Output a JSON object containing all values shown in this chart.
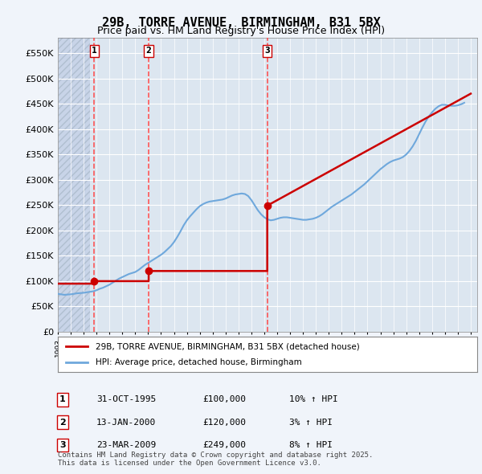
{
  "title": "29B, TORRE AVENUE, BIRMINGHAM, B31 5BX",
  "subtitle": "Price paid vs. HM Land Registry's House Price Index (HPI)",
  "xlim_start": 1993.0,
  "xlim_end": 2025.5,
  "ylim": [
    0,
    580000
  ],
  "yticks": [
    0,
    50000,
    100000,
    150000,
    200000,
    250000,
    300000,
    350000,
    400000,
    450000,
    500000,
    550000
  ],
  "ytick_labels": [
    "£0",
    "£50K",
    "£100K",
    "£150K",
    "£200K",
    "£250K",
    "£300K",
    "£350K",
    "£400K",
    "£450K",
    "£500K",
    "£550K"
  ],
  "transactions": [
    {
      "num": 1,
      "date_dec": 1995.83,
      "price": 100000,
      "label": "1",
      "pct": "10%",
      "date_str": "31-OCT-1995",
      "price_str": "£100,000"
    },
    {
      "num": 2,
      "date_dec": 2000.04,
      "price": 120000,
      "label": "2",
      "pct": "3%",
      "date_str": "13-JAN-2000",
      "price_str": "£120,000"
    },
    {
      "num": 3,
      "date_dec": 2009.23,
      "price": 249000,
      "label": "3",
      "pct": "8%",
      "date_str": "23-MAR-2009",
      "price_str": "£249,000"
    }
  ],
  "hpi_line_color": "#6fa8dc",
  "price_line_color": "#cc0000",
  "vline_color": "#ff4444",
  "background_color": "#f0f4fa",
  "plot_bg_color": "#dce6f0",
  "grid_color": "#ffffff",
  "hatch_color": "#c8d4e8",
  "legend_box_entries": [
    "29B, TORRE AVENUE, BIRMINGHAM, B31 5BX (detached house)",
    "HPI: Average price, detached house, Birmingham"
  ],
  "table_entries": [
    {
      "num": "1",
      "date": "31-OCT-1995",
      "price": "£100,000",
      "pct": "10% ↑ HPI"
    },
    {
      "num": "2",
      "date": "13-JAN-2000",
      "price": "£120,000",
      "pct": "3% ↑ HPI"
    },
    {
      "num": "3",
      "date": "23-MAR-2009",
      "price": "£249,000",
      "pct": "8% ↑ HPI"
    }
  ],
  "footer": "Contains HM Land Registry data © Crown copyright and database right 2025.\nThis data is licensed under the Open Government Licence v3.0.",
  "hpi_data_x": [
    1993.0,
    1993.25,
    1993.5,
    1993.75,
    1994.0,
    1994.25,
    1994.5,
    1994.75,
    1995.0,
    1995.25,
    1995.5,
    1995.75,
    1996.0,
    1996.25,
    1996.5,
    1996.75,
    1997.0,
    1997.25,
    1997.5,
    1997.75,
    1998.0,
    1998.25,
    1998.5,
    1998.75,
    1999.0,
    1999.25,
    1999.5,
    1999.75,
    2000.0,
    2000.25,
    2000.5,
    2000.75,
    2001.0,
    2001.25,
    2001.5,
    2001.75,
    2002.0,
    2002.25,
    2002.5,
    2002.75,
    2003.0,
    2003.25,
    2003.5,
    2003.75,
    2004.0,
    2004.25,
    2004.5,
    2004.75,
    2005.0,
    2005.25,
    2005.5,
    2005.75,
    2006.0,
    2006.25,
    2006.5,
    2006.75,
    2007.0,
    2007.25,
    2007.5,
    2007.75,
    2008.0,
    2008.25,
    2008.5,
    2008.75,
    2009.0,
    2009.25,
    2009.5,
    2009.75,
    2010.0,
    2010.25,
    2010.5,
    2010.75,
    2011.0,
    2011.25,
    2011.5,
    2011.75,
    2012.0,
    2012.25,
    2012.5,
    2012.75,
    2013.0,
    2013.25,
    2013.5,
    2013.75,
    2014.0,
    2014.25,
    2014.5,
    2014.75,
    2015.0,
    2015.25,
    2015.5,
    2015.75,
    2016.0,
    2016.25,
    2016.5,
    2016.75,
    2017.0,
    2017.25,
    2017.5,
    2017.75,
    2018.0,
    2018.25,
    2018.5,
    2018.75,
    2019.0,
    2019.25,
    2019.5,
    2019.75,
    2020.0,
    2020.25,
    2020.5,
    2020.75,
    2021.0,
    2021.25,
    2021.5,
    2021.75,
    2022.0,
    2022.25,
    2022.5,
    2022.75,
    2023.0,
    2023.25,
    2023.5,
    2023.75,
    2024.0,
    2024.25,
    2024.5
  ],
  "hpi_data_y": [
    75000,
    74000,
    73000,
    73500,
    74000,
    75000,
    76000,
    76500,
    77000,
    78000,
    79000,
    80000,
    82000,
    85000,
    87000,
    90000,
    93000,
    97000,
    101000,
    105000,
    108000,
    111000,
    114000,
    116000,
    118000,
    122000,
    127000,
    132000,
    136000,
    140000,
    144000,
    148000,
    152000,
    157000,
    163000,
    169000,
    177000,
    187000,
    198000,
    210000,
    220000,
    228000,
    235000,
    242000,
    248000,
    252000,
    255000,
    257000,
    258000,
    259000,
    260000,
    261000,
    263000,
    266000,
    269000,
    271000,
    272000,
    273000,
    272000,
    268000,
    260000,
    250000,
    240000,
    232000,
    226000,
    222000,
    220000,
    221000,
    223000,
    225000,
    226000,
    226000,
    225000,
    224000,
    223000,
    222000,
    221000,
    221000,
    222000,
    223000,
    225000,
    228000,
    232000,
    237000,
    242000,
    247000,
    251000,
    255000,
    259000,
    263000,
    267000,
    271000,
    276000,
    281000,
    286000,
    291000,
    297000,
    303000,
    309000,
    315000,
    321000,
    326000,
    331000,
    335000,
    338000,
    340000,
    342000,
    345000,
    350000,
    357000,
    366000,
    377000,
    390000,
    403000,
    415000,
    425000,
    433000,
    440000,
    445000,
    448000,
    448000,
    447000,
    446000,
    446000,
    447000,
    449000,
    452000
  ],
  "price_line_x": [
    1993.0,
    1995.83,
    1995.83,
    2000.04,
    2000.04,
    2009.23,
    2009.23,
    2025.0
  ],
  "price_line_y": [
    95000,
    95000,
    100000,
    100000,
    120000,
    120000,
    249000,
    470000
  ]
}
